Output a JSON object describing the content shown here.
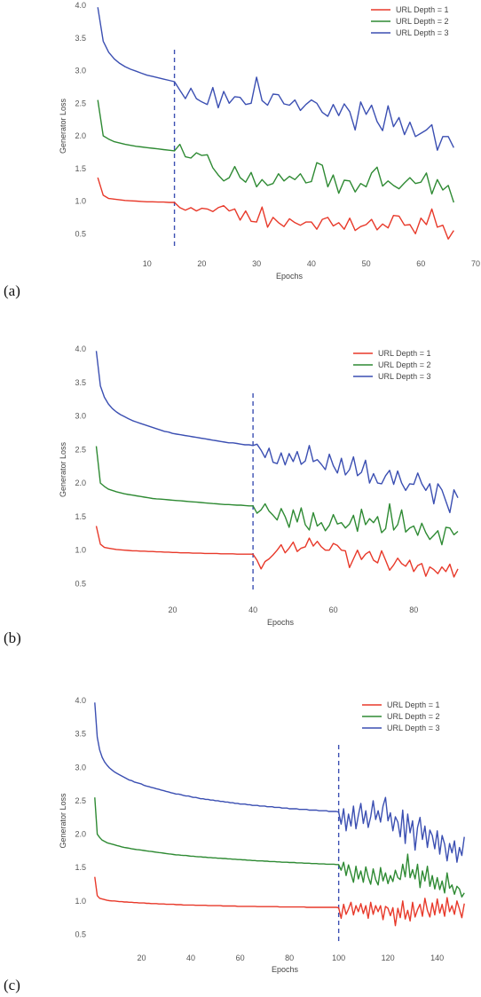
{
  "chart_data": [
    {
      "type": "line",
      "panel_label": "(a)",
      "xlabel": "Epochs",
      "ylabel": "Generator Loss",
      "xlim": [
        0,
        70
      ],
      "ylim": [
        0.3,
        4.0
      ],
      "xticks": [
        10,
        20,
        30,
        40,
        50,
        60,
        70
      ],
      "yticks": [
        0.5,
        1.0,
        1.5,
        2.0,
        2.5,
        3.0,
        3.5,
        4.0
      ],
      "grid": false,
      "legend": "top-right",
      "vline": 15,
      "x_start": 1,
      "series": [
        {
          "name": "URL Depth = 1",
          "color": "#e8392a",
          "values": [
            1.36,
            1.09,
            1.04,
            1.03,
            1.02,
            1.01,
            1.005,
            1.0,
            0.995,
            0.99,
            0.99,
            0.985,
            0.985,
            0.98,
            0.98,
            0.9,
            0.86,
            0.9,
            0.85,
            0.89,
            0.88,
            0.84,
            0.9,
            0.93,
            0.85,
            0.88,
            0.71,
            0.85,
            0.69,
            0.68,
            0.91,
            0.6,
            0.75,
            0.67,
            0.61,
            0.73,
            0.67,
            0.63,
            0.68,
            0.68,
            0.57,
            0.72,
            0.75,
            0.62,
            0.67,
            0.57,
            0.74,
            0.55,
            0.61,
            0.64,
            0.72,
            0.56,
            0.65,
            0.59,
            0.78,
            0.77,
            0.63,
            0.64,
            0.5,
            0.74,
            0.64,
            0.88,
            0.6,
            0.63,
            0.42,
            0.55
          ]
        },
        {
          "name": "URL Depth = 2",
          "color": "#2e8a33",
          "values": [
            2.55,
            2.0,
            1.95,
            1.91,
            1.89,
            1.87,
            1.855,
            1.84,
            1.83,
            1.82,
            1.81,
            1.8,
            1.79,
            1.78,
            1.77,
            1.87,
            1.68,
            1.66,
            1.74,
            1.7,
            1.71,
            1.51,
            1.4,
            1.31,
            1.36,
            1.53,
            1.36,
            1.29,
            1.44,
            1.22,
            1.33,
            1.24,
            1.27,
            1.42,
            1.31,
            1.38,
            1.33,
            1.42,
            1.28,
            1.3,
            1.59,
            1.55,
            1.22,
            1.4,
            1.12,
            1.32,
            1.31,
            1.14,
            1.27,
            1.22,
            1.43,
            1.52,
            1.23,
            1.31,
            1.24,
            1.19,
            1.28,
            1.36,
            1.27,
            1.29,
            1.43,
            1.11,
            1.33,
            1.17,
            1.24,
            0.98
          ]
        },
        {
          "name": "URL Depth = 3",
          "color": "#3b4fb2",
          "values": [
            3.97,
            3.45,
            3.28,
            3.18,
            3.11,
            3.06,
            3.02,
            2.99,
            2.96,
            2.93,
            2.91,
            2.89,
            2.87,
            2.85,
            2.83,
            2.7,
            2.57,
            2.73,
            2.57,
            2.52,
            2.48,
            2.74,
            2.43,
            2.68,
            2.5,
            2.6,
            2.59,
            2.48,
            2.5,
            2.9,
            2.54,
            2.47,
            2.64,
            2.63,
            2.49,
            2.47,
            2.55,
            2.39,
            2.48,
            2.55,
            2.5,
            2.36,
            2.3,
            2.48,
            2.31,
            2.49,
            2.37,
            2.09,
            2.52,
            2.33,
            2.47,
            2.22,
            2.08,
            2.46,
            2.14,
            2.28,
            2.02,
            2.21,
            1.99,
            2.04,
            2.09,
            2.17,
            1.78,
            1.99,
            1.99,
            1.82
          ]
        }
      ]
    },
    {
      "type": "line",
      "panel_label": "(b)",
      "xlabel": "Epochs",
      "ylabel": "Generator Loss",
      "xlim": [
        0,
        91
      ],
      "ylim": [
        0.4,
        4.0
      ],
      "xticks": [
        20,
        40,
        60,
        80
      ],
      "yticks": [
        0.5,
        1.0,
        1.5,
        2.0,
        2.5,
        3.0,
        3.5,
        4.0
      ],
      "grid": false,
      "legend": "top-right",
      "vline": 40,
      "x_start": 1,
      "series": [
        {
          "name": "URL Depth = 1",
          "color": "#e8392a",
          "values": [
            1.36,
            1.09,
            1.04,
            1.03,
            1.02,
            1.01,
            1.005,
            1.0,
            0.995,
            0.99,
            0.99,
            0.985,
            0.985,
            0.98,
            0.98,
            0.975,
            0.975,
            0.97,
            0.97,
            0.965,
            0.965,
            0.96,
            0.96,
            0.96,
            0.955,
            0.955,
            0.955,
            0.95,
            0.95,
            0.95,
            0.95,
            0.945,
            0.945,
            0.945,
            0.945,
            0.94,
            0.94,
            0.94,
            0.94,
            0.94,
            0.85,
            0.72,
            0.83,
            0.87,
            0.93,
            1.0,
            1.08,
            0.96,
            1.03,
            1.12,
            0.98,
            1.03,
            1.05,
            1.18,
            1.06,
            1.13,
            1.05,
            1.0,
            1.0,
            1.1,
            1.07,
            1.0,
            0.99,
            0.74,
            0.87,
            1.0,
            0.86,
            0.94,
            0.98,
            0.85,
            0.81,
            0.99,
            0.85,
            0.7,
            0.78,
            0.88,
            0.8,
            0.76,
            0.85,
            0.68,
            0.77,
            0.8,
            0.61,
            0.75,
            0.71,
            0.65,
            0.75,
            0.68,
            0.79,
            0.6,
            0.72
          ]
        },
        {
          "name": "URL Depth = 2",
          "color": "#2e8a33",
          "values": [
            2.55,
            2.0,
            1.95,
            1.91,
            1.89,
            1.87,
            1.855,
            1.84,
            1.83,
            1.82,
            1.81,
            1.8,
            1.79,
            1.78,
            1.77,
            1.765,
            1.76,
            1.755,
            1.75,
            1.745,
            1.74,
            1.735,
            1.73,
            1.725,
            1.72,
            1.715,
            1.71,
            1.705,
            1.7,
            1.695,
            1.69,
            1.685,
            1.68,
            1.68,
            1.675,
            1.67,
            1.67,
            1.665,
            1.66,
            1.66,
            1.55,
            1.6,
            1.69,
            1.58,
            1.52,
            1.45,
            1.62,
            1.5,
            1.34,
            1.6,
            1.42,
            1.63,
            1.38,
            1.3,
            1.56,
            1.36,
            1.41,
            1.29,
            1.37,
            1.53,
            1.39,
            1.41,
            1.33,
            1.39,
            1.52,
            1.28,
            1.61,
            1.38,
            1.47,
            1.41,
            1.5,
            1.26,
            1.32,
            1.69,
            1.3,
            1.38,
            1.6,
            1.27,
            1.33,
            1.36,
            1.22,
            1.4,
            1.26,
            1.16,
            1.22,
            1.29,
            1.08,
            1.34,
            1.33,
            1.23,
            1.28
          ]
        },
        {
          "name": "URL Depth = 3",
          "color": "#3b4fb2",
          "values": [
            3.97,
            3.45,
            3.28,
            3.18,
            3.11,
            3.06,
            3.02,
            2.99,
            2.96,
            2.93,
            2.91,
            2.89,
            2.87,
            2.85,
            2.83,
            2.81,
            2.79,
            2.77,
            2.76,
            2.74,
            2.73,
            2.72,
            2.71,
            2.7,
            2.69,
            2.68,
            2.67,
            2.66,
            2.65,
            2.64,
            2.63,
            2.62,
            2.61,
            2.6,
            2.6,
            2.59,
            2.58,
            2.57,
            2.57,
            2.56,
            2.58,
            2.49,
            2.38,
            2.52,
            2.31,
            2.29,
            2.45,
            2.27,
            2.44,
            2.32,
            2.47,
            2.28,
            2.33,
            2.56,
            2.32,
            2.35,
            2.28,
            2.2,
            2.43,
            2.26,
            2.15,
            2.37,
            2.12,
            2.2,
            2.39,
            2.11,
            2.16,
            2.34,
            2.0,
            2.14,
            2.0,
            1.99,
            2.11,
            2.19,
            1.98,
            2.18,
            2.0,
            1.89,
            1.99,
            1.98,
            2.15,
            1.99,
            1.89,
            1.99,
            1.69,
            1.99,
            1.9,
            1.73,
            1.56,
            1.9,
            1.78
          ]
        }
      ]
    },
    {
      "type": "line",
      "panel_label": "(c)",
      "xlabel": "Epochs",
      "ylabel": "Generator Loss",
      "xlim": [
        0,
        152
      ],
      "ylim": [
        0.4,
        4.0
      ],
      "xticks": [
        20,
        40,
        60,
        80,
        100,
        120,
        140
      ],
      "yticks": [
        0.5,
        1.0,
        1.5,
        2.0,
        2.5,
        3.0,
        3.5,
        4.0
      ],
      "grid": false,
      "legend": "top-right",
      "vline": 100,
      "x_start": 1,
      "series": [
        {
          "name": "URL Depth = 1",
          "color": "#e8392a",
          "values": [
            1.36,
            1.08,
            1.04,
            1.03,
            1.02,
            1.01,
            1.005,
            1.0,
            1.0,
            0.995,
            0.99,
            0.99,
            0.985,
            0.985,
            0.98,
            0.98,
            0.975,
            0.975,
            0.97,
            0.97,
            0.97,
            0.965,
            0.965,
            0.96,
            0.96,
            0.96,
            0.955,
            0.955,
            0.955,
            0.95,
            0.95,
            0.95,
            0.95,
            0.945,
            0.945,
            0.945,
            0.94,
            0.94,
            0.94,
            0.94,
            0.94,
            0.935,
            0.935,
            0.935,
            0.935,
            0.935,
            0.93,
            0.93,
            0.93,
            0.93,
            0.93,
            0.93,
            0.925,
            0.925,
            0.925,
            0.925,
            0.925,
            0.925,
            0.92,
            0.92,
            0.92,
            0.92,
            0.92,
            0.92,
            0.92,
            0.92,
            0.915,
            0.915,
            0.915,
            0.915,
            0.915,
            0.915,
            0.915,
            0.915,
            0.915,
            0.91,
            0.91,
            0.91,
            0.91,
            0.91,
            0.91,
            0.91,
            0.91,
            0.91,
            0.91,
            0.91,
            0.905,
            0.905,
            0.905,
            0.905,
            0.905,
            0.905,
            0.905,
            0.905,
            0.905,
            0.905,
            0.905,
            0.905,
            0.905,
            0.9,
            0.74,
            0.95,
            0.8,
            0.88,
            0.98,
            0.79,
            0.93,
            0.84,
            0.96,
            0.81,
            0.93,
            0.74,
            0.98,
            0.8,
            0.93,
            0.84,
            0.93,
            0.72,
            0.92,
            0.89,
            0.78,
            0.9,
            0.63,
            0.89,
            0.75,
            1.0,
            0.73,
            0.86,
            0.7,
            0.98,
            0.76,
            0.87,
            0.95,
            0.77,
            1.04,
            0.86,
            0.76,
            0.97,
            0.79,
            1.03,
            0.82,
            0.95,
            0.77,
            1.05,
            0.84,
            0.93,
            0.8,
            1.0,
            0.88,
            0.75,
            0.96
          ]
        },
        {
          "name": "URL Depth = 2",
          "color": "#2e8a33",
          "values": [
            2.55,
            2.0,
            1.95,
            1.91,
            1.89,
            1.87,
            1.86,
            1.85,
            1.84,
            1.83,
            1.82,
            1.81,
            1.8,
            1.795,
            1.79,
            1.78,
            1.775,
            1.77,
            1.765,
            1.76,
            1.755,
            1.75,
            1.745,
            1.74,
            1.735,
            1.73,
            1.725,
            1.72,
            1.715,
            1.71,
            1.705,
            1.7,
            1.695,
            1.69,
            1.69,
            1.685,
            1.68,
            1.68,
            1.675,
            1.67,
            1.67,
            1.665,
            1.66,
            1.66,
            1.655,
            1.655,
            1.65,
            1.65,
            1.645,
            1.645,
            1.64,
            1.64,
            1.635,
            1.635,
            1.63,
            1.63,
            1.625,
            1.625,
            1.62,
            1.62,
            1.615,
            1.615,
            1.61,
            1.61,
            1.605,
            1.605,
            1.6,
            1.6,
            1.6,
            1.595,
            1.595,
            1.59,
            1.59,
            1.59,
            1.585,
            1.585,
            1.58,
            1.58,
            1.58,
            1.575,
            1.575,
            1.575,
            1.57,
            1.57,
            1.57,
            1.565,
            1.565,
            1.565,
            1.56,
            1.56,
            1.56,
            1.555,
            1.555,
            1.555,
            1.55,
            1.55,
            1.55,
            1.55,
            1.545,
            1.545,
            1.46,
            1.58,
            1.38,
            1.54,
            1.41,
            1.28,
            1.52,
            1.33,
            1.45,
            1.28,
            1.51,
            1.36,
            1.25,
            1.48,
            1.32,
            1.24,
            1.5,
            1.3,
            1.42,
            1.26,
            1.38,
            1.29,
            1.46,
            1.35,
            1.32,
            1.55,
            1.36,
            1.7,
            1.35,
            1.47,
            1.33,
            1.55,
            1.2,
            1.45,
            1.3,
            1.52,
            1.22,
            1.38,
            1.18,
            1.35,
            1.17,
            1.3,
            1.12,
            1.42,
            1.19,
            1.24,
            1.1,
            1.22,
            1.18,
            1.06,
            1.12
          ]
        },
        {
          "name": "URL Depth = 3",
          "color": "#3b4fb2",
          "values": [
            3.97,
            3.45,
            3.26,
            3.15,
            3.08,
            3.03,
            2.99,
            2.96,
            2.93,
            2.91,
            2.89,
            2.87,
            2.85,
            2.83,
            2.81,
            2.8,
            2.78,
            2.77,
            2.76,
            2.75,
            2.73,
            2.72,
            2.71,
            2.7,
            2.69,
            2.68,
            2.67,
            2.66,
            2.65,
            2.64,
            2.63,
            2.62,
            2.61,
            2.6,
            2.6,
            2.59,
            2.58,
            2.57,
            2.57,
            2.56,
            2.55,
            2.55,
            2.54,
            2.53,
            2.53,
            2.52,
            2.52,
            2.51,
            2.51,
            2.5,
            2.5,
            2.49,
            2.49,
            2.48,
            2.48,
            2.47,
            2.47,
            2.46,
            2.46,
            2.45,
            2.45,
            2.45,
            2.44,
            2.44,
            2.43,
            2.43,
            2.43,
            2.42,
            2.42,
            2.42,
            2.41,
            2.41,
            2.41,
            2.4,
            2.4,
            2.4,
            2.39,
            2.39,
            2.39,
            2.38,
            2.38,
            2.38,
            2.38,
            2.37,
            2.37,
            2.37,
            2.37,
            2.36,
            2.36,
            2.36,
            2.36,
            2.35,
            2.35,
            2.35,
            2.35,
            2.34,
            2.34,
            2.34,
            2.34,
            2.33,
            2.15,
            2.38,
            2.05,
            2.3,
            2.12,
            2.42,
            2.08,
            2.28,
            2.46,
            2.16,
            2.35,
            2.1,
            2.26,
            2.5,
            2.22,
            2.35,
            2.18,
            2.42,
            2.55,
            2.2,
            2.32,
            2.05,
            2.26,
            2.18,
            1.96,
            2.36,
            1.86,
            2.3,
            2.02,
            2.2,
            1.76,
            2.1,
            2.25,
            1.92,
            2.12,
            1.8,
            2.06,
            1.98,
            1.78,
            2.05,
            1.7,
            1.98,
            1.85,
            1.6,
            1.86,
            1.72,
            1.9,
            1.58,
            1.8,
            1.68,
            1.96
          ]
        }
      ]
    }
  ]
}
